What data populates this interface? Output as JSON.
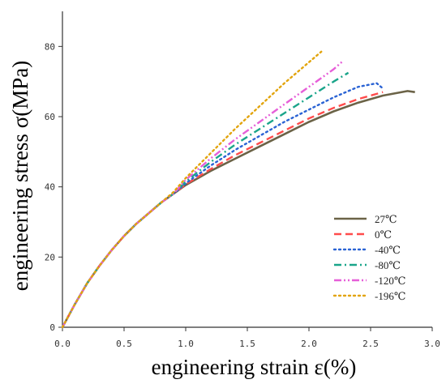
{
  "chart_data": {
    "type": "line",
    "title": "",
    "xlabel": "engineering strain ε(%)",
    "ylabel": "engineering stress σ(MPa)",
    "xlim": [
      0,
      3.0
    ],
    "ylim": [
      0,
      90
    ],
    "x_ticks": [
      "0.0",
      "0.5",
      "1.0",
      "1.5",
      "2.0",
      "2.5",
      "3.0"
    ],
    "y_ticks": [
      "0",
      "20",
      "40",
      "60",
      "80"
    ],
    "grid": false,
    "legend_position": "bottom-right",
    "series": [
      {
        "name": "27℃",
        "color": "#6b6347",
        "dash": "solid",
        "x": [
          0,
          0.1,
          0.2,
          0.3,
          0.4,
          0.5,
          0.6,
          0.7,
          0.8,
          0.9,
          1.0,
          1.2,
          1.4,
          1.6,
          1.8,
          2.0,
          2.2,
          2.4,
          2.6,
          2.8,
          2.86
        ],
        "y": [
          0,
          6.5,
          12.5,
          17.5,
          22,
          26,
          29.5,
          32.5,
          35.5,
          38,
          40.5,
          44.5,
          48,
          51.5,
          55,
          58.5,
          61.5,
          64,
          66,
          67.3,
          67
        ]
      },
      {
        "name": "0℃",
        "color": "#ff4b4b",
        "dash": "dashed",
        "x": [
          0,
          0.1,
          0.2,
          0.3,
          0.4,
          0.5,
          0.6,
          0.7,
          0.8,
          0.9,
          1.0,
          1.2,
          1.4,
          1.6,
          1.8,
          2.0,
          2.2,
          2.4,
          2.6
        ],
        "y": [
          0,
          6.5,
          12.5,
          17.5,
          22,
          26,
          29.5,
          32.5,
          35.5,
          38,
          40.7,
          45,
          49,
          52.5,
          56,
          59.5,
          62.5,
          65,
          67
        ]
      },
      {
        "name": "-40℃",
        "color": "#2a63d4",
        "dash": "dotted",
        "x": [
          0,
          0.1,
          0.2,
          0.3,
          0.4,
          0.5,
          0.6,
          0.7,
          0.8,
          0.9,
          1.0,
          1.2,
          1.4,
          1.6,
          1.8,
          2.0,
          2.2,
          2.4,
          2.55,
          2.6
        ],
        "y": [
          0,
          6.5,
          12.5,
          17.5,
          22,
          26,
          29.5,
          32.5,
          35.5,
          38,
          41,
          46,
          50.5,
          54.5,
          58.5,
          62,
          65.5,
          68.5,
          69.5,
          68
        ]
      },
      {
        "name": "-80℃",
        "color": "#1aa58a",
        "dash": "dash-dot",
        "x": [
          0,
          0.1,
          0.2,
          0.3,
          0.4,
          0.5,
          0.6,
          0.7,
          0.8,
          0.9,
          1.0,
          1.2,
          1.4,
          1.6,
          1.8,
          2.0,
          2.2,
          2.32
        ],
        "y": [
          0,
          6.5,
          12.5,
          17.5,
          22,
          26,
          29.5,
          32.5,
          35.5,
          38,
          41.5,
          47,
          52,
          56.5,
          61,
          65.5,
          70,
          72.5
        ]
      },
      {
        "name": "-120℃",
        "color": "#e65fd8",
        "dash": "dash-dot-dot",
        "x": [
          0,
          0.1,
          0.2,
          0.3,
          0.4,
          0.5,
          0.6,
          0.7,
          0.8,
          0.9,
          1.0,
          1.2,
          1.4,
          1.6,
          1.8,
          2.0,
          2.2,
          2.28
        ],
        "y": [
          0,
          6.5,
          12.5,
          17.5,
          22,
          26,
          29.5,
          32.5,
          35.5,
          38,
          42,
          48,
          53.5,
          58.5,
          63.5,
          68.5,
          73.5,
          76
        ]
      },
      {
        "name": "-196℃",
        "color": "#e2a40c",
        "dash": "dotted",
        "x": [
          0,
          0.1,
          0.2,
          0.3,
          0.4,
          0.5,
          0.6,
          0.7,
          0.8,
          0.9,
          1.0,
          1.2,
          1.4,
          1.6,
          1.8,
          2.0,
          2.1
        ],
        "y": [
          0,
          6.5,
          12.5,
          17.5,
          22,
          26,
          29.5,
          32.5,
          35.5,
          38.5,
          42.5,
          49.5,
          56.5,
          63,
          69.5,
          75.5,
          78.5
        ]
      }
    ]
  }
}
